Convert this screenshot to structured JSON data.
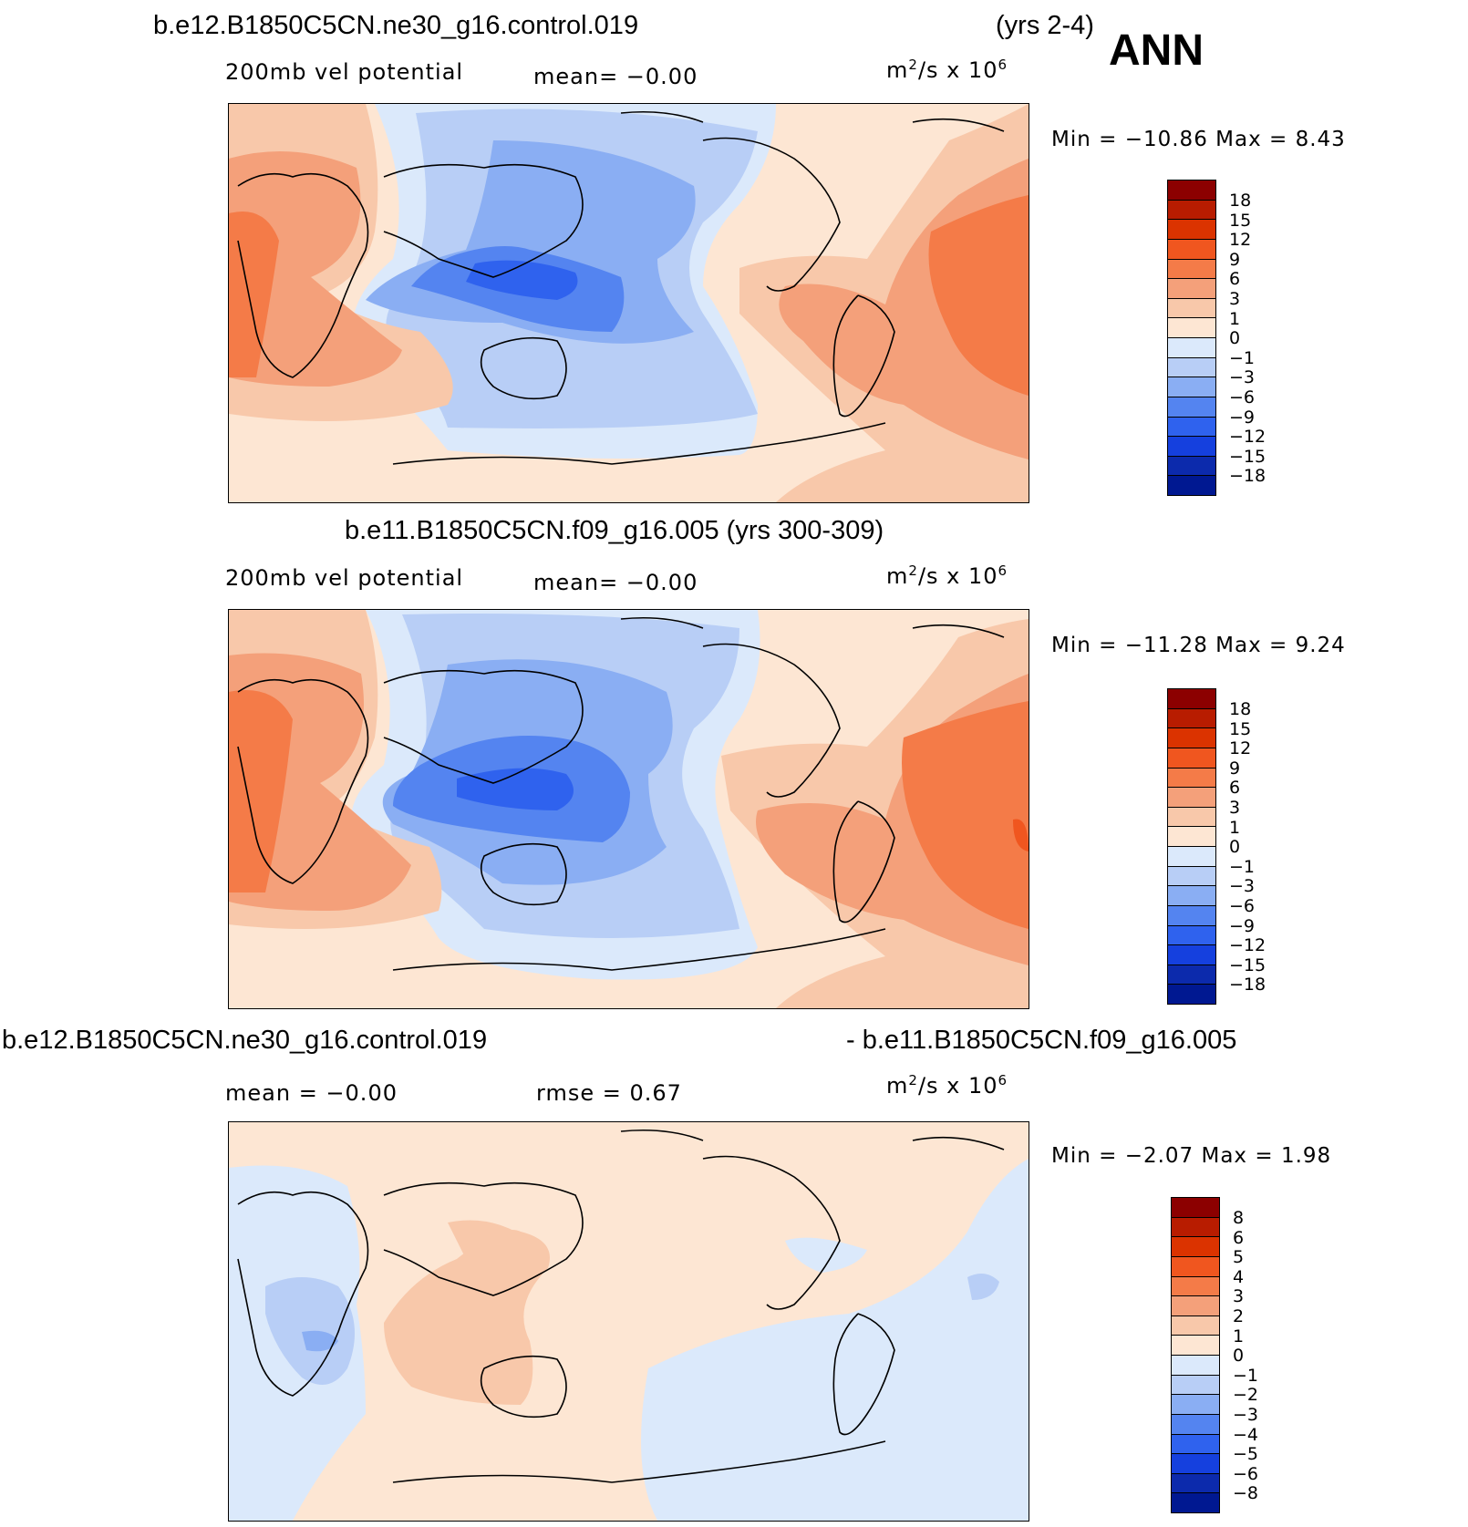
{
  "header": {
    "case_title": "b.e12.B1850C5CN.ne30_g16.control.019",
    "years": "(yrs 2-4)",
    "season": "ANN"
  },
  "panels": [
    {
      "title": "",
      "variable": "200mb vel potential",
      "stat_text": "mean=   −0.00",
      "stat2_text": "",
      "units": "m²/s x 10⁶",
      "minmax": "Min = −10.86 Max =   8.43",
      "levels": [
        "18",
        "15",
        "12",
        "9",
        "6",
        "3",
        "1",
        "0",
        "−1",
        "−3",
        "−6",
        "−9",
        "−12",
        "−15",
        "−18"
      ],
      "colors": [
        "#8c0000",
        "#b81c00",
        "#db3300",
        "#f0561f",
        "#f47b48",
        "#f4a07a",
        "#f8c8aa",
        "#fde6d3",
        "#dbe9fb",
        "#b8cef6",
        "#8aaef3",
        "#5484f0",
        "#2f62ee",
        "#1540de",
        "#0c2aac",
        "#001891"
      ]
    },
    {
      "title": "b.e11.B1850C5CN.f09_g16.005 (yrs 300-309)",
      "variable": "200mb vel potential",
      "stat_text": "mean=   −0.00",
      "stat2_text": "",
      "units": "m²/s x 10⁶",
      "minmax": "Min = −11.28 Max =   9.24",
      "levels": [
        "18",
        "15",
        "12",
        "9",
        "6",
        "3",
        "1",
        "0",
        "−1",
        "−3",
        "−6",
        "−9",
        "−12",
        "−15",
        "−18"
      ],
      "colors": [
        "#8c0000",
        "#b81c00",
        "#db3300",
        "#f0561f",
        "#f47b48",
        "#f4a07a",
        "#f8c8aa",
        "#fde6d3",
        "#dbe9fb",
        "#b8cef6",
        "#8aaef3",
        "#5484f0",
        "#2f62ee",
        "#1540de",
        "#0c2aac",
        "#001891"
      ]
    },
    {
      "title_left": "b.e12.B1850C5CN.ne30_g16.control.019",
      "title_right": "- b.e11.B1850C5CN.f09_g16.005",
      "stat_text": "mean =   −0.00",
      "stat2_text": "rmse =    0.67",
      "units": "m²/s x 10⁶",
      "minmax": "Min =   −2.07 Max =   1.98",
      "levels": [
        "8",
        "6",
        "5",
        "4",
        "3",
        "2",
        "1",
        "0",
        "−1",
        "−2",
        "−3",
        "−4",
        "−5",
        "−6",
        "−8"
      ],
      "colors": [
        "#8c0000",
        "#b81c00",
        "#db3300",
        "#f0561f",
        "#f47b48",
        "#f4a07a",
        "#f8c8aa",
        "#fde6d3",
        "#dbe9fb",
        "#b8cef6",
        "#8aaef3",
        "#5484f0",
        "#2f62ee",
        "#1540de",
        "#0c2aac",
        "#001891"
      ]
    }
  ]
}
